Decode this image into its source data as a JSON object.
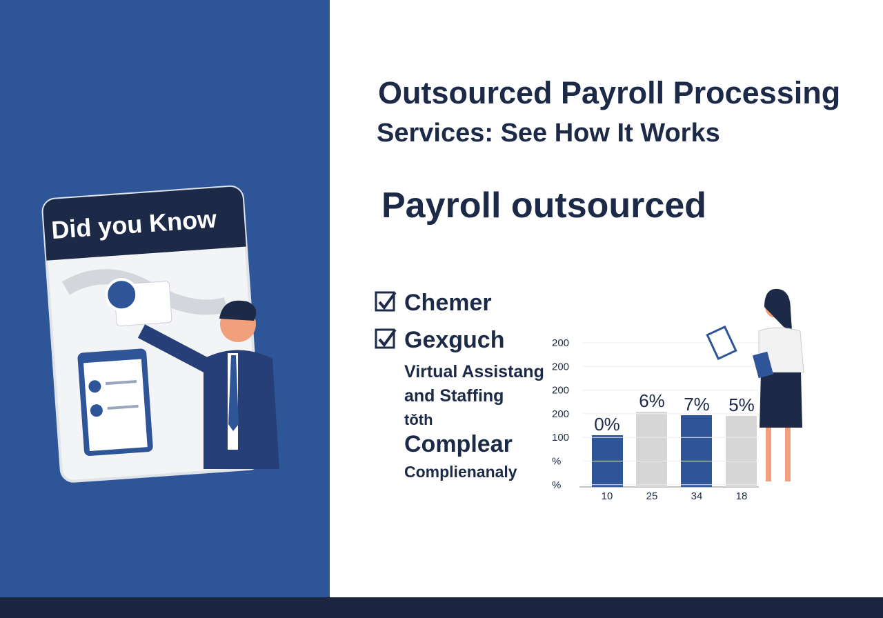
{
  "header": {
    "title_line1": "Outsourced Payroll Processing",
    "title_line2": "Services: See How It Works",
    "subtitle": "Payroll outsourced"
  },
  "card": {
    "title": "Did you Know"
  },
  "checklist": [
    "Chemer",
    "Gexguch"
  ],
  "paragraph": [
    "Virtual Assistang",
    "and Staffing",
    "tŏth",
    "Complear",
    "Complienanaly"
  ],
  "chart": {
    "y_labels": [
      "200",
      "200",
      "200",
      "200",
      "100",
      "%",
      "%"
    ],
    "bar_labels": [
      "0%",
      "6%",
      "7%",
      "5%"
    ],
    "x_labels": [
      "10",
      "25",
      "34",
      "18"
    ]
  }
}
